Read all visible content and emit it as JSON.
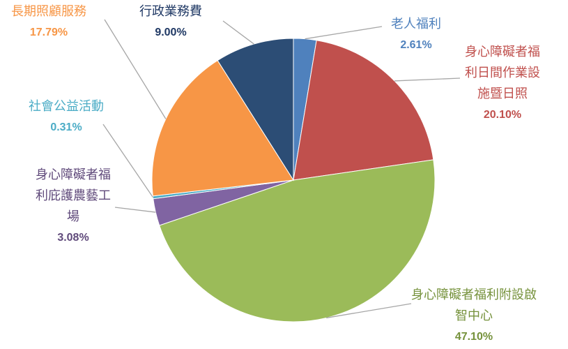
{
  "chart_data": {
    "type": "pie",
    "categories": [
      "老人福利",
      "身心障礙者福利日間作業設施暨日照",
      "身心障礙者福利附設啟智中心",
      "身心障礙者福利庇護農藝工場",
      "社會公益活動",
      "長期照顧服務",
      "行政業務費"
    ],
    "values": [
      2.61,
      20.1,
      47.1,
      3.08,
      0.31,
      17.79,
      9.0
    ],
    "value_labels": [
      "2.61%",
      "20.10%",
      "47.10%",
      "3.08%",
      "0.31%",
      "17.79%",
      "9.00%"
    ],
    "colors": [
      "#4f81bd",
      "#c0504d",
      "#9bbb59",
      "#8064a2",
      "#4bacc6",
      "#f79646",
      "#2c4d75"
    ],
    "label_colors": [
      "#4f81bd",
      "#c0504d",
      "#76923c",
      "#604a7b",
      "#4bacc6",
      "#f79646",
      "#1f3864"
    ]
  }
}
